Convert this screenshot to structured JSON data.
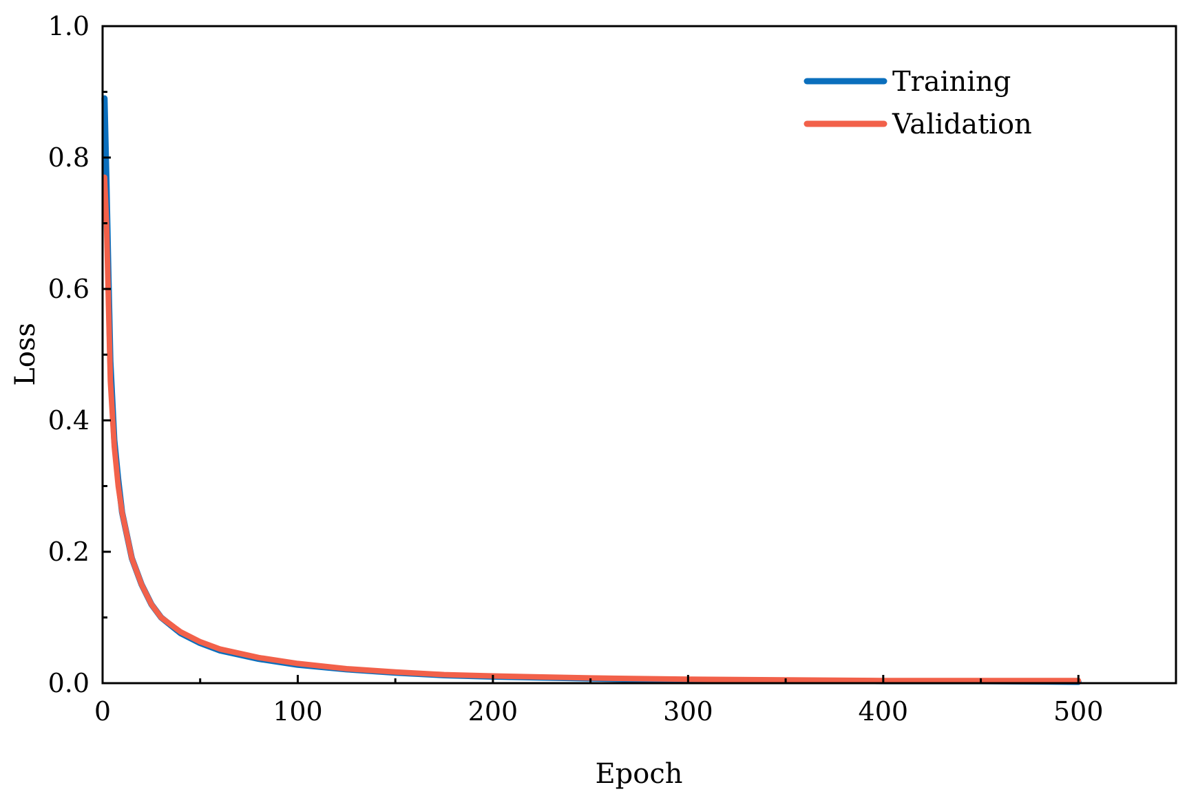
{
  "chart_data": {
    "type": "line",
    "title": "",
    "xlabel": "Epoch",
    "ylabel": "Loss",
    "xlim": [
      0,
      550
    ],
    "ylim": [
      0,
      1.0
    ],
    "x_ticks": [
      0,
      100,
      200,
      300,
      400,
      500
    ],
    "x_tick_labels": [
      "0",
      "100",
      "200",
      "300",
      "400",
      "500"
    ],
    "x_minor_ticks": [
      50,
      150,
      250,
      350,
      450
    ],
    "y_ticks": [
      0.0,
      0.2,
      0.4,
      0.6,
      0.8,
      1.0
    ],
    "y_tick_labels": [
      "0.0",
      "0.2",
      "0.4",
      "0.6",
      "0.8",
      "1.0"
    ],
    "y_minor_ticks": [
      0.1,
      0.3,
      0.5,
      0.7,
      0.9
    ],
    "grid": false,
    "legend_position": "top-right",
    "series": [
      {
        "name": "Training",
        "color": "#0b6fbd",
        "x": [
          1,
          2,
          3,
          4,
          6,
          8,
          10,
          15,
          20,
          25,
          30,
          40,
          50,
          60,
          80,
          100,
          125,
          150,
          175,
          200,
          250,
          300,
          350,
          400,
          450,
          500
        ],
        "y": [
          0.89,
          0.76,
          0.62,
          0.49,
          0.37,
          0.31,
          0.26,
          0.19,
          0.15,
          0.12,
          0.1,
          0.076,
          0.061,
          0.05,
          0.037,
          0.028,
          0.021,
          0.016,
          0.012,
          0.01,
          0.007,
          0.005,
          0.004,
          0.003,
          0.003,
          0.002
        ]
      },
      {
        "name": "Validation",
        "color": "#f2614a",
        "x": [
          1,
          2,
          3,
          4,
          6,
          8,
          10,
          15,
          20,
          25,
          30,
          40,
          50,
          60,
          80,
          100,
          125,
          150,
          175,
          200,
          250,
          300,
          350,
          400,
          450,
          500
        ],
        "y": [
          0.77,
          0.7,
          0.58,
          0.46,
          0.36,
          0.3,
          0.26,
          0.19,
          0.15,
          0.12,
          0.1,
          0.078,
          0.063,
          0.052,
          0.039,
          0.03,
          0.022,
          0.017,
          0.013,
          0.011,
          0.008,
          0.006,
          0.005,
          0.004,
          0.004,
          0.004
        ]
      }
    ]
  }
}
